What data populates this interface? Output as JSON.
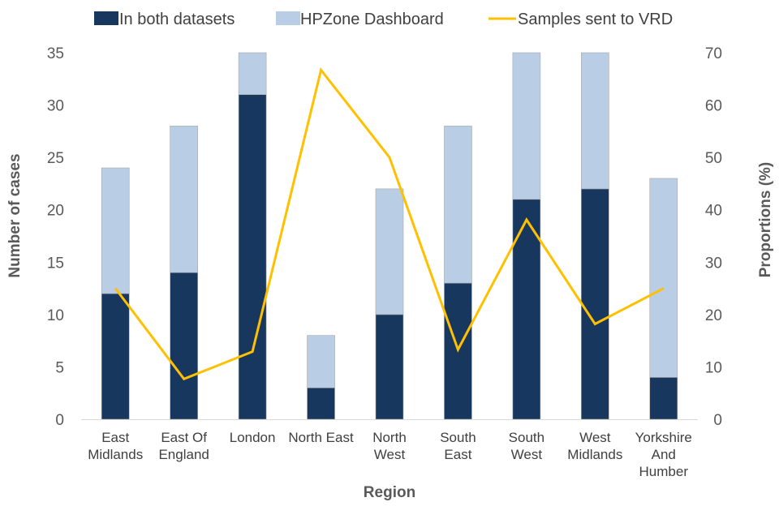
{
  "chart_data": {
    "type": "bar",
    "stacked": true,
    "categories": [
      [
        "East",
        "Midlands"
      ],
      [
        "East Of",
        "England"
      ],
      [
        "London"
      ],
      [
        "North East"
      ],
      [
        "North",
        "West"
      ],
      [
        "South",
        "East"
      ],
      [
        "South",
        "West"
      ],
      [
        "West",
        "Midlands"
      ],
      [
        "Yorkshire",
        "And",
        "Humber"
      ]
    ],
    "series": [
      {
        "name": "In both datasets",
        "type": "bar",
        "axis": "left",
        "color": "#17375e",
        "values": [
          12,
          14,
          31,
          3,
          10,
          13,
          21,
          22,
          4
        ]
      },
      {
        "name": "HPZone Dashboard",
        "type": "bar",
        "axis": "left",
        "color": "#b9cde5",
        "values": [
          12,
          14,
          4,
          5,
          12,
          15,
          14,
          13,
          19
        ]
      },
      {
        "name": "Samples sent to VRD",
        "type": "line",
        "axis": "right",
        "color": "#ffc000",
        "values": [
          25,
          7.7,
          12.9,
          66.7,
          50,
          13.3,
          38.1,
          18.2,
          25
        ]
      }
    ],
    "xlabel": "Region",
    "ylabel": "Number of cases",
    "y2label": "Proportions (%)",
    "ylim": [
      0,
      35
    ],
    "yticks": [
      0,
      5,
      10,
      15,
      20,
      25,
      30,
      35
    ],
    "y2lim": [
      0,
      70
    ],
    "y2ticks": [
      0,
      10,
      20,
      30,
      40,
      50,
      60,
      70
    ],
    "grid": false,
    "legend_position": "top"
  }
}
